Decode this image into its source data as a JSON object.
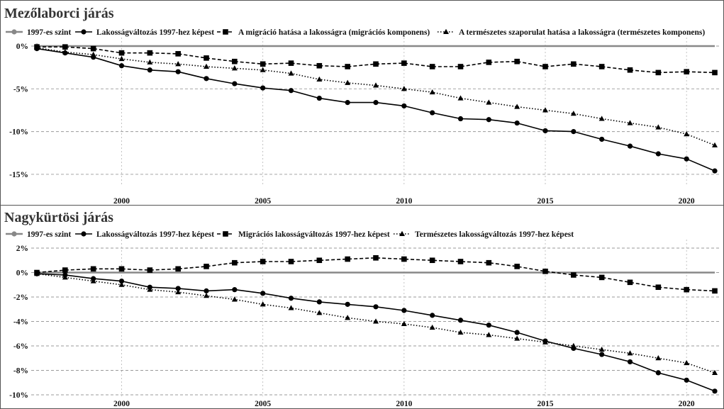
{
  "chart_data": [
    {
      "type": "line",
      "title": "Mezőlaborci járás",
      "x": [
        1997,
        1998,
        1999,
        2000,
        2001,
        2002,
        2003,
        2004,
        2005,
        2006,
        2007,
        2008,
        2009,
        2010,
        2011,
        2012,
        2013,
        2014,
        2015,
        2016,
        2017,
        2018,
        2019,
        2020,
        2021
      ],
      "xticks": [
        2000,
        2005,
        2010,
        2015,
        2020
      ],
      "ylim": [
        -16,
        0
      ],
      "yticks": [
        0,
        -5,
        -10,
        -15
      ],
      "ytick_labels": [
        "0%",
        "-5%",
        "-10%",
        "-15%"
      ],
      "grid": true,
      "legend_position": "top",
      "series": [
        {
          "name": "1997-es szint",
          "marker": "circle",
          "line": "solid-gray",
          "color": "#888888",
          "values": [
            0,
            0,
            0,
            0,
            0,
            0,
            0,
            0,
            0,
            0,
            0,
            0,
            0,
            0,
            0,
            0,
            0,
            0,
            0,
            0,
            0,
            0,
            0,
            0,
            0
          ]
        },
        {
          "name": "Lakosságváltozás 1997-hez képest",
          "marker": "circle",
          "line": "solid",
          "color": "#000000",
          "values": [
            -0.3,
            -0.8,
            -1.3,
            -2.3,
            -2.8,
            -3.0,
            -3.8,
            -4.4,
            -4.9,
            -5.2,
            -6.1,
            -6.6,
            -6.6,
            -7.0,
            -7.8,
            -8.5,
            -8.6,
            -9.0,
            -9.9,
            -10.0,
            -10.9,
            -11.7,
            -12.6,
            -13.2,
            -14.6
          ]
        },
        {
          "name": "A migráció hatása a lakosságra (migrációs komponens)",
          "marker": "square",
          "line": "dashed",
          "color": "#000000",
          "values": [
            -0.1,
            -0.1,
            -0.3,
            -0.8,
            -0.8,
            -0.9,
            -1.4,
            -1.8,
            -2.1,
            -2.0,
            -2.3,
            -2.4,
            -2.1,
            -2.0,
            -2.4,
            -2.4,
            -1.9,
            -1.8,
            -2.4,
            -2.1,
            -2.4,
            -2.8,
            -3.1,
            -3.0,
            -3.1
          ]
        },
        {
          "name": "A természetes szaporulat hatása a lakosságra (természetes komponens)",
          "marker": "triangle",
          "line": "dotted",
          "color": "#000000",
          "values": [
            -0.2,
            -0.7,
            -1.0,
            -1.5,
            -1.9,
            -2.1,
            -2.4,
            -2.6,
            -2.8,
            -3.2,
            -3.9,
            -4.3,
            -4.6,
            -5.0,
            -5.4,
            -6.1,
            -6.6,
            -7.1,
            -7.5,
            -7.9,
            -8.5,
            -9.0,
            -9.5,
            -10.3,
            -11.6
          ]
        }
      ]
    },
    {
      "type": "line",
      "title": "Nagykürtösi járás",
      "x": [
        1997,
        1998,
        1999,
        2000,
        2001,
        2002,
        2003,
        2004,
        2005,
        2006,
        2007,
        2008,
        2009,
        2010,
        2011,
        2012,
        2013,
        2014,
        2015,
        2016,
        2017,
        2018,
        2019,
        2020,
        2021
      ],
      "xticks": [
        2000,
        2005,
        2010,
        2015,
        2020
      ],
      "ylim": [
        -10,
        2
      ],
      "yticks": [
        2,
        0,
        -2,
        -4,
        -6,
        -8,
        -10
      ],
      "ytick_labels": [
        "2%",
        "0%",
        "-2%",
        "-4%",
        "-6%",
        "-8%",
        "-10%"
      ],
      "grid": true,
      "legend_position": "top",
      "series": [
        {
          "name": "1997-es szint",
          "marker": "circle",
          "line": "solid-gray",
          "color": "#888888",
          "values": [
            0,
            0,
            0,
            0,
            0,
            0,
            0,
            0,
            0,
            0,
            0,
            0,
            0,
            0,
            0,
            0,
            0,
            0,
            0,
            0,
            0,
            0,
            0,
            0,
            0
          ]
        },
        {
          "name": "Lakosságváltozás 1997-hez képest",
          "marker": "circle",
          "line": "solid",
          "color": "#000000",
          "values": [
            -0.1,
            -0.2,
            -0.5,
            -0.7,
            -1.2,
            -1.3,
            -1.5,
            -1.4,
            -1.7,
            -2.1,
            -2.4,
            -2.6,
            -2.8,
            -3.1,
            -3.5,
            -3.9,
            -4.3,
            -4.9,
            -5.6,
            -6.2,
            -6.7,
            -7.3,
            -8.2,
            -8.8,
            -9.7
          ]
        },
        {
          "name": "Migrációs lakosságváltozás 1997-hez képest",
          "marker": "square",
          "line": "dashed",
          "color": "#000000",
          "values": [
            0.0,
            0.2,
            0.3,
            0.3,
            0.2,
            0.3,
            0.5,
            0.8,
            0.9,
            0.9,
            1.0,
            1.1,
            1.2,
            1.1,
            1.0,
            0.9,
            0.8,
            0.5,
            0.1,
            -0.2,
            -0.4,
            -0.8,
            -1.2,
            -1.4,
            -1.5
          ]
        },
        {
          "name": "Természetes lakosságváltozás 1997-hez képest",
          "marker": "triangle",
          "line": "dotted",
          "color": "#000000",
          "values": [
            -0.1,
            -0.4,
            -0.7,
            -1.0,
            -1.4,
            -1.6,
            -1.9,
            -2.2,
            -2.6,
            -2.9,
            -3.3,
            -3.7,
            -4.0,
            -4.2,
            -4.5,
            -4.9,
            -5.1,
            -5.4,
            -5.7,
            -6.0,
            -6.3,
            -6.6,
            -7.0,
            -7.4,
            -8.2
          ]
        }
      ]
    }
  ]
}
